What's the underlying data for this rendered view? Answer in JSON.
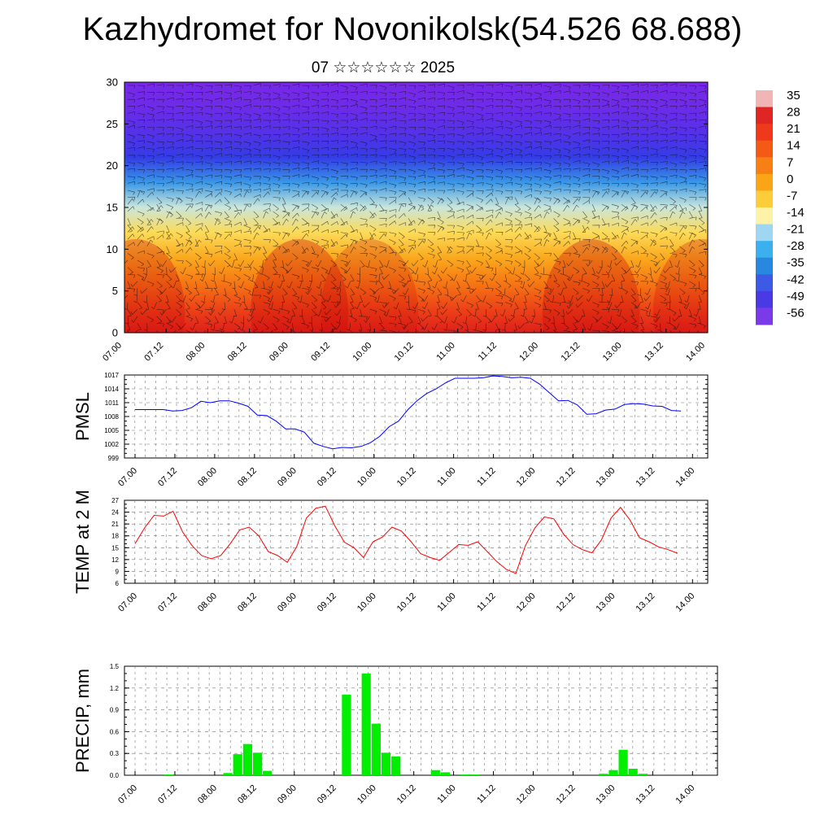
{
  "title": "Kazhydromet for Novonikolsk(54.526 68.688)",
  "subtitle": "07 ☆☆☆☆☆☆ 2025",
  "colorbar": {
    "labels": [
      "35",
      "28",
      "21",
      "14",
      "7",
      "0",
      "-7",
      "-14",
      "-21",
      "-28",
      "-35",
      "-42",
      "-49",
      "-56"
    ],
    "colors": [
      "#f2b5b5",
      "#e02525",
      "#ee3a1a",
      "#f25a16",
      "#f77f14",
      "#faa516",
      "#fbcd3a",
      "#fdf3a8",
      "#9fd6f2",
      "#3ab0ee",
      "#2888e0",
      "#3c5ae6",
      "#4a3ae6",
      "#7a3ae8"
    ]
  },
  "time_ticks": [
    "07.00",
    "07.12",
    "08.00",
    "08.12",
    "09.00",
    "09.12",
    "10.00",
    "10.12",
    "11.00",
    "11.12",
    "12.00",
    "12.12",
    "13.00",
    "13.12",
    "14.00"
  ],
  "chart_data": [
    {
      "type": "heatmap",
      "panel": "upper-air",
      "ylim": [
        0,
        30
      ],
      "yticks": [
        0,
        5,
        10,
        15,
        20,
        25,
        30
      ],
      "levels_km": [
        0,
        3,
        6,
        9,
        12,
        15,
        18,
        21,
        24,
        27,
        30
      ],
      "temperature_profile_c": [
        28,
        20,
        10,
        2,
        -6,
        -14,
        -30,
        -45,
        -55,
        -60,
        -62
      ],
      "wind_barbs": true
    },
    {
      "type": "line",
      "panel": "pmsl",
      "ylabel": "PMSL",
      "ylim": [
        999,
        1017
      ],
      "yticks": [
        999,
        1002,
        1005,
        1008,
        1011,
        1014,
        1017
      ],
      "color": "#0000ff",
      "values": [
        1009.5,
        1009.5,
        1009.5,
        1009.5,
        1009.2,
        1009.3,
        1009.9,
        1011.3,
        1011,
        1011.4,
        1011.4,
        1010.9,
        1010.2,
        1008.3,
        1008.2,
        1007,
        1005.3,
        1005.3,
        1004.6,
        1002.2,
        1001.5,
        1001,
        1001.3,
        1001.2,
        1001.5,
        1002.3,
        1003.7,
        1005.8,
        1007,
        1009.5,
        1011.5,
        1013,
        1014,
        1015.3,
        1016.3,
        1016.3,
        1016.3,
        1016.4,
        1016.8,
        1016.7,
        1016.4,
        1016.5,
        1016.3,
        1015,
        1013.2,
        1011.4,
        1011.5,
        1010.5,
        1008.5,
        1008.6,
        1009.4,
        1009.6,
        1010.6,
        1010.8,
        1010.7,
        1010.3,
        1010.2,
        1009.3,
        1009.2
      ]
    },
    {
      "type": "line",
      "panel": "temp2m",
      "ylabel": "TEMP at 2 M",
      "ylim": [
        6,
        27
      ],
      "yticks": [
        6,
        9,
        12,
        15,
        18,
        21,
        24,
        27
      ],
      "color": "#ff0000",
      "values": [
        16,
        20,
        23.2,
        23,
        24.2,
        19,
        15.5,
        13,
        12.2,
        13,
        16,
        19.5,
        20.2,
        18,
        14,
        13,
        11.3,
        15.3,
        22.5,
        25,
        25.5,
        20.5,
        16.4,
        15,
        12.5,
        16.5,
        17.7,
        20.2,
        19.2,
        16.5,
        13.5,
        12.5,
        11.8,
        13.8,
        15.8,
        15.6,
        16.5,
        14,
        11.5,
        9.5,
        8.5,
        15.5,
        20,
        22.8,
        22.3,
        18.5,
        15.8,
        14.5,
        13.7,
        17,
        22.5,
        25.2,
        22,
        17.5,
        16.5,
        15.2,
        14.5,
        13.6
      ]
    },
    {
      "type": "bar",
      "panel": "precip",
      "ylabel": "PRECIP, mm",
      "ylim": [
        0,
        1.5
      ],
      "yticks": [
        "0.0",
        "0.3",
        "0.6",
        "0.9",
        "1.2",
        "1.5"
      ],
      "color": "#00ee00",
      "bars": [
        {
          "x": 4,
          "v": 0.01
        },
        {
          "x": 10,
          "v": 0.03
        },
        {
          "x": 11,
          "v": 0.29
        },
        {
          "x": 12,
          "v": 0.43
        },
        {
          "x": 13,
          "v": 0.31
        },
        {
          "x": 14,
          "v": 0.06
        },
        {
          "x": 22,
          "v": 1.11
        },
        {
          "x": 24,
          "v": 1.4
        },
        {
          "x": 25,
          "v": 0.71
        },
        {
          "x": 26,
          "v": 0.31
        },
        {
          "x": 27,
          "v": 0.26
        },
        {
          "x": 31,
          "v": 0.07
        },
        {
          "x": 32,
          "v": 0.04
        },
        {
          "x": 34,
          "v": 0.01
        },
        {
          "x": 35,
          "v": 0.01
        },
        {
          "x": 48,
          "v": 0.02
        },
        {
          "x": 49,
          "v": 0.07
        },
        {
          "x": 50,
          "v": 0.35
        },
        {
          "x": 51,
          "v": 0.09
        },
        {
          "x": 52,
          "v": 0.02
        }
      ]
    }
  ]
}
